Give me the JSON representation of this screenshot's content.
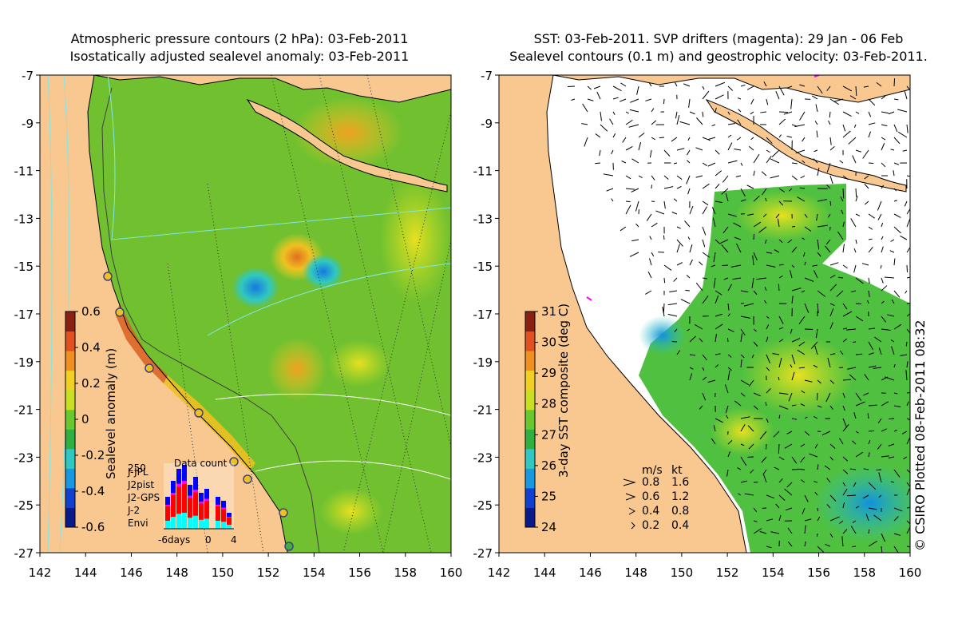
{
  "left_panel": {
    "title_line1": "Atmospheric pressure contours (2 hPa): 03-Feb-2011",
    "title_line2": "Isostatically adjusted sealevel anomaly: 03-Feb-2011",
    "colorbar_label": "Sealevel anomaly (m)",
    "colorbar_ticks": [
      "0.6",
      "0.4",
      "0.2",
      "0",
      "-0.2",
      "-0.4",
      "-0.6"
    ],
    "colorbar_colors": [
      "#0a1a8a",
      "#1040d0",
      "#1898e0",
      "#30c8c0",
      "#30b040",
      "#68c830",
      "#c8e020",
      "#f0d020",
      "#f09020",
      "#e05020",
      "#8a2010"
    ],
    "data_count": {
      "title": "Data count",
      "legend": [
        {
          "name": "Envi",
          "color": "#00ffff"
        },
        {
          "name": "J-2",
          "color": "#ff0000"
        },
        {
          "name": "J2-GPS",
          "color": "#ff00ff"
        },
        {
          "name": "J2pist",
          "color": "#00ff00"
        },
        {
          "name": "J-JPL",
          "color": "#0000ff"
        }
      ],
      "ymax_label": "250",
      "x_ticks": [
        "-6days",
        "0",
        "4"
      ]
    }
  },
  "right_panel": {
    "title_line1": "SST: 03-Feb-2011. SVP drifters (magenta): 29 Jan - 06 Feb",
    "title_line2": "Sealevel contours (0.1 m) and geostrophic velocity: 03-Feb-2011.",
    "colorbar_label": "3-day SST composite (deg C)",
    "colorbar_ticks": [
      "31",
      "30",
      "29",
      "28",
      "27",
      "26",
      "25",
      "24"
    ],
    "colorbar_colors": [
      "#0a1a8a",
      "#1040d0",
      "#1898e0",
      "#30c8c0",
      "#30b040",
      "#68c830",
      "#c8e020",
      "#f0d020",
      "#f09020",
      "#e05020",
      "#8a2010"
    ],
    "velocity_legend": {
      "header_ms": "m/s",
      "header_kt": "kt",
      "rows": [
        {
          "ms": "0.8",
          "kt": "1.6"
        },
        {
          "ms": "0.6",
          "kt": "1.2"
        },
        {
          "ms": "0.4",
          "kt": "0.8"
        },
        {
          "ms": "0.2",
          "kt": "0.4"
        }
      ]
    }
  },
  "axes": {
    "y_ticks": [
      "-7",
      "-9",
      "-11",
      "-13",
      "-15",
      "-17",
      "-19",
      "-21",
      "-23",
      "-25",
      "-27"
    ],
    "x_ticks": [
      "142",
      "144",
      "146",
      "148",
      "150",
      "152",
      "154",
      "156",
      "158",
      "160"
    ]
  },
  "credit": "© CSIRO Plotted 08-Feb-2011 08:32",
  "colors": {
    "land": "#f8c890",
    "ocean_mean": "#70c030",
    "drifter": "#ff00ff"
  }
}
